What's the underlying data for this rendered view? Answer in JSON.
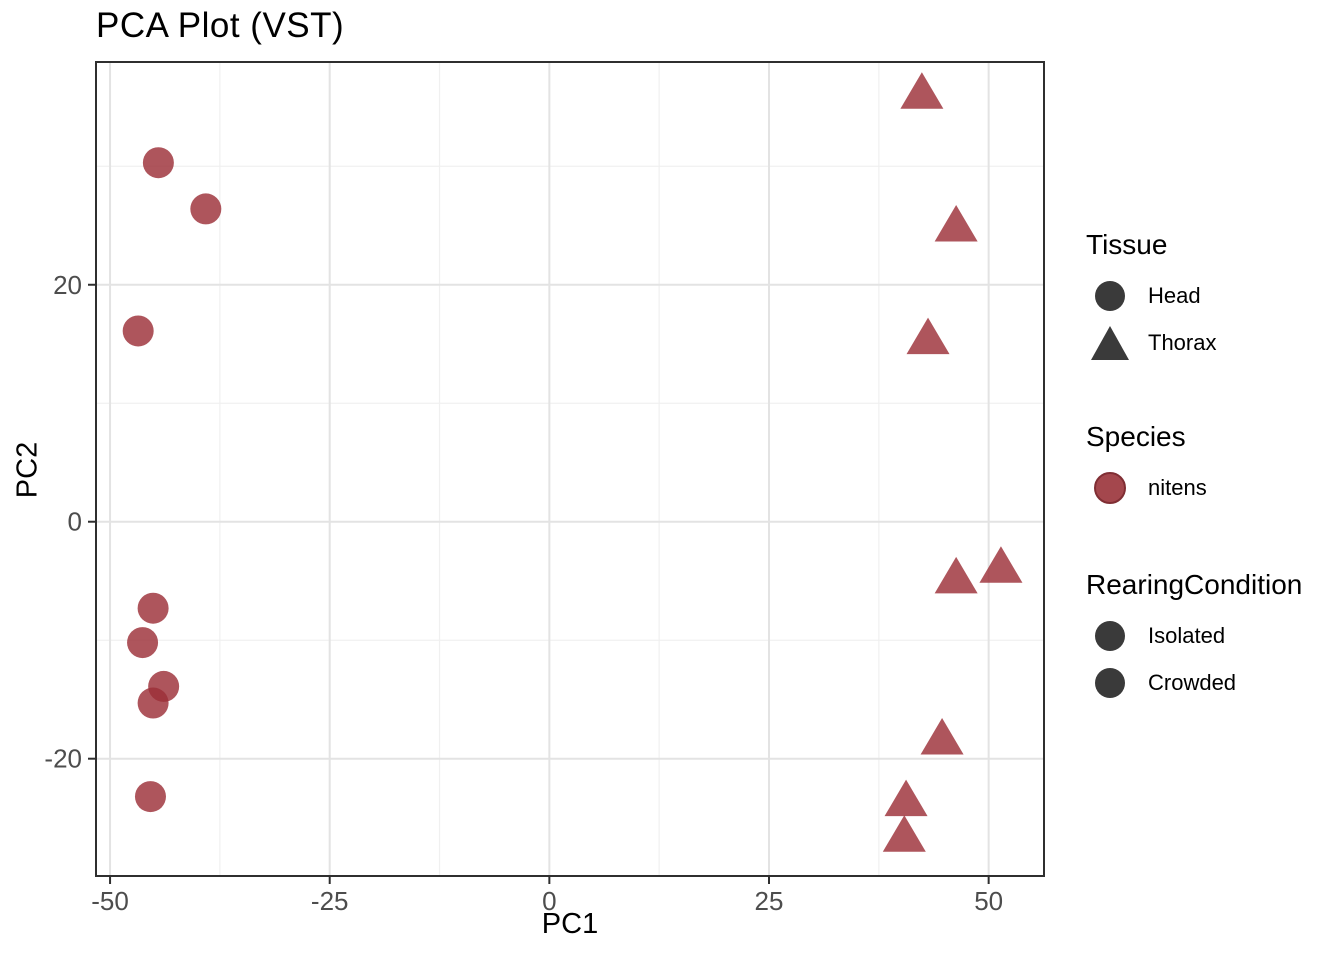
{
  "chart_data": {
    "type": "scatter",
    "title": "PCA Plot (VST)",
    "xlabel": "PC1",
    "ylabel": "PC2",
    "xlim": [
      -51.6,
      56.3
    ],
    "ylim": [
      -29.9,
      38.8
    ],
    "x_ticks": [
      -50,
      -25,
      0,
      25,
      50
    ],
    "y_ticks": [
      -20,
      0,
      20
    ],
    "x_minor_ticks": [
      -37.5,
      -12.5,
      12.5,
      37.5
    ],
    "y_minor_ticks": [
      -10,
      10,
      30
    ],
    "grid": true,
    "legend_position": "right",
    "series": [
      {
        "name": "Head",
        "tissue": "Head",
        "species": "nitens",
        "marker": "circle",
        "points": [
          [
            -44.5,
            30.3
          ],
          [
            -39.1,
            26.4
          ],
          [
            -46.8,
            16.1
          ],
          [
            -45.1,
            -7.3
          ],
          [
            -46.3,
            -10.2
          ],
          [
            -43.9,
            -13.9
          ],
          [
            -45.1,
            -15.3
          ],
          [
            -45.4,
            -23.2
          ]
        ]
      },
      {
        "name": "Thorax",
        "tissue": "Thorax",
        "species": "nitens",
        "marker": "triangle",
        "points": [
          [
            42.4,
            36.2
          ],
          [
            46.3,
            25.0
          ],
          [
            43.1,
            15.5
          ],
          [
            51.4,
            -3.8
          ],
          [
            46.3,
            -4.7
          ],
          [
            44.7,
            -18.3
          ],
          [
            40.6,
            -23.5
          ],
          [
            40.4,
            -26.5
          ]
        ]
      }
    ]
  },
  "legend": {
    "groups": [
      {
        "title": "Tissue",
        "items": [
          {
            "label": "Head",
            "symbol": "circle-dark"
          },
          {
            "label": "Thorax",
            "symbol": "triangle-dark"
          }
        ]
      },
      {
        "title": "Species",
        "items": [
          {
            "label": "nitens",
            "symbol": "circle-red"
          }
        ]
      },
      {
        "title": "RearingCondition",
        "items": [
          {
            "label": "Isolated",
            "symbol": "circle-dark"
          },
          {
            "label": "Crowded",
            "symbol": "circle-dark"
          }
        ]
      }
    ]
  },
  "colors": {
    "point_red": "#9C3038",
    "point_opacity": 0.82,
    "legend_red_fill": "#A4474D",
    "legend_red_stroke": "#802E34",
    "legend_dark": "#3A3A3A",
    "grid_major": "#E3E3E3",
    "grid_minor": "#F0F0F0",
    "panel_border": "#2F2F2F",
    "tick_mark": "#2F2F2F",
    "tick_label": "#4D4D4D",
    "text": "#000000",
    "panel_background": "#FFFFFF"
  }
}
